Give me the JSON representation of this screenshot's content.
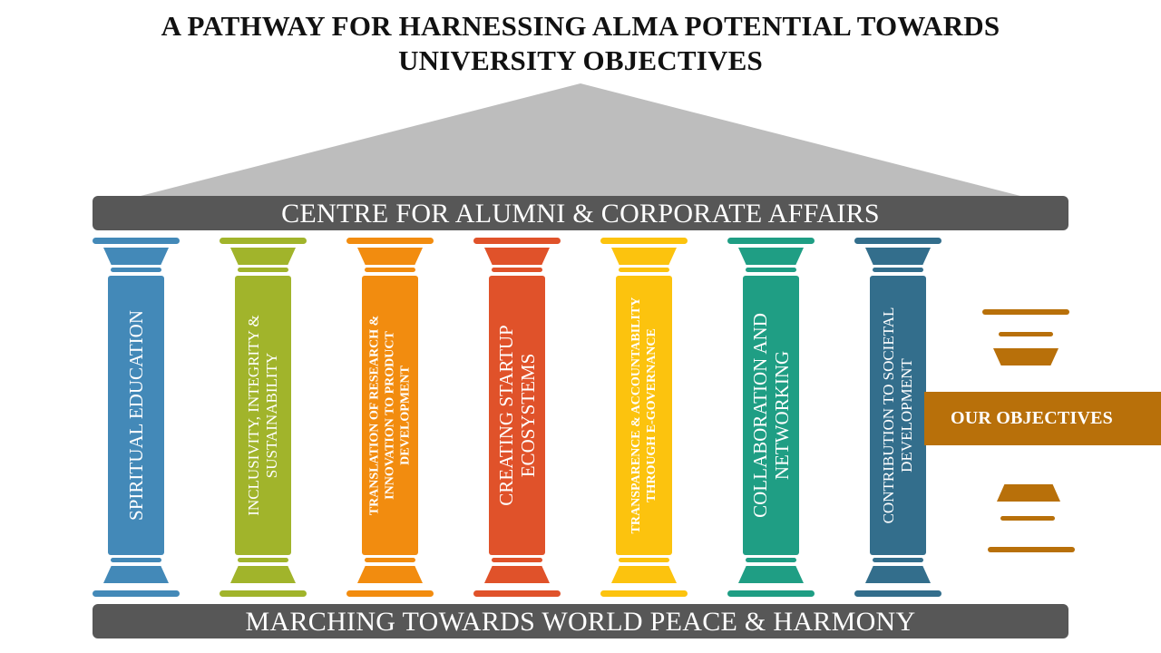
{
  "title": {
    "line1": "A PATHWAY FOR HARNESSING ALMA POTENTIAL TOWARDS",
    "line2": "UNIVERSITY OBJECTIVES"
  },
  "roof_color": "#bdbdbd",
  "top_bar": "CENTRE FOR ALUMNI & CORPORATE AFFAIRS",
  "bottom_bar": "MARCHING TOWARDS WORLD PEACE & HARMONY",
  "objectives_label": "OUR OBJECTIVES",
  "objectives_color": "#b8700a",
  "pillars": [
    {
      "label": "SPIRITUAL EDUCATION",
      "color": "#4389b8"
    },
    {
      "label": "INCLUSIVITY, INTEGRITY & SUSTAINABILITY",
      "color": "#a1b42b"
    },
    {
      "label": "TRANSLATION OF RESEARCH & INNOVATION TO PRODUCT DEVELOPMENT",
      "color": "#f28c0f"
    },
    {
      "label": "CREATING STARTUP ECOSYSTEMS",
      "color": "#e0522a"
    },
    {
      "label": "TRANSPARENCE & ACCOUNTABILITY THROUGH E-GOVERNANCE",
      "color": "#fcc30e"
    },
    {
      "label": "COLLABORATION AND NETWORKING",
      "color": "#1f9e84"
    },
    {
      "label": "CONTRIBUTION TO SOCIETAL DEVELOPMENT",
      "color": "#336e8c"
    }
  ]
}
